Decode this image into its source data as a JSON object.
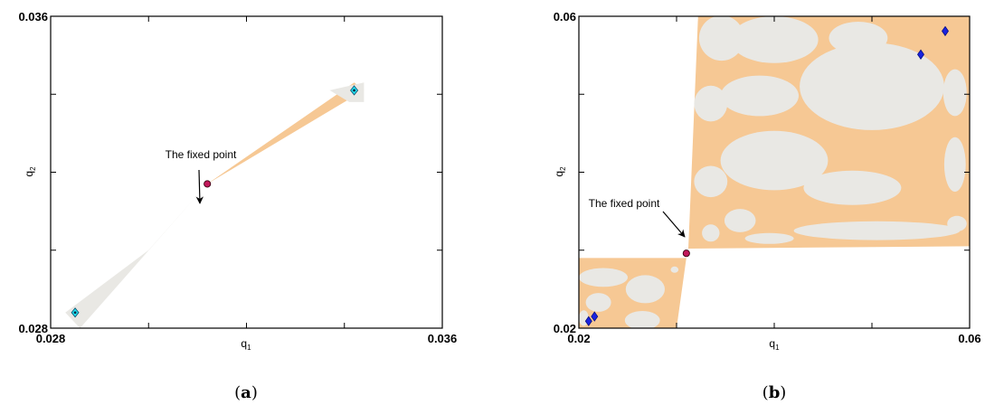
{
  "colors": {
    "region_orange": "#f6c894",
    "region_grey": "#e9e8e4",
    "fixed_point": "#c2185b",
    "marker_blue": "#1a23e0",
    "marker_cyan": "#22e0f0",
    "frame": "#000000"
  },
  "chart_data": [
    {
      "type": "scatter",
      "panel_caption": "a",
      "x_label": "q",
      "x_label_sub": "1",
      "y_label": "q",
      "y_label_sub": "2",
      "xlim": [
        0.028,
        0.036
      ],
      "ylim": [
        0.028,
        0.036
      ],
      "x_tick_labels": [
        "0.028",
        "",
        "",
        "",
        "0.036"
      ],
      "y_tick_labels": [
        "0.028",
        "",
        "",
        "",
        "0.036"
      ],
      "x_ticks": [
        0.028,
        0.03,
        0.032,
        0.034,
        0.036
      ],
      "y_ticks": [
        0.028,
        0.03,
        0.032,
        0.034,
        0.036
      ],
      "grid": false,
      "fixed_point": {
        "x": 0.0312,
        "y": 0.0317
      },
      "annotation": {
        "text": "The fixed point"
      },
      "markers": [
        {
          "x": 0.0285,
          "y": 0.0284,
          "style": "cyan-diamond"
        },
        {
          "x": 0.0342,
          "y": 0.0341,
          "style": "cyan-diamond"
        }
      ],
      "regions": [
        {
          "fill": "grey",
          "points": [
            [
              0.0283,
              0.0284
            ],
            [
              0.0286,
              0.028
            ],
            [
              0.0312,
              0.0317
            ],
            [
              0.03,
              0.03
            ]
          ]
        },
        {
          "fill": "orange",
          "points": [
            [
              0.0312,
              0.0317
            ],
            [
              0.0342,
              0.0343
            ],
            [
              0.0344,
              0.0341
            ]
          ]
        },
        {
          "fill": "grey",
          "points": [
            [
              0.0337,
              0.0341
            ],
            [
              0.0344,
              0.0343
            ],
            [
              0.0344,
              0.0338
            ],
            [
              0.0341,
              0.0338
            ]
          ]
        }
      ]
    },
    {
      "type": "scatter",
      "panel_caption": "b",
      "x_label": "q",
      "x_label_sub": "1",
      "y_label": "q",
      "y_label_sub": "2",
      "xlim": [
        0.02,
        0.06
      ],
      "ylim": [
        0.02,
        0.06
      ],
      "x_tick_labels": [
        "0.02",
        "",
        "",
        "",
        "0.06"
      ],
      "y_tick_labels": [
        "0.02",
        "",
        "",
        "",
        "0.06"
      ],
      "x_ticks": [
        0.02,
        0.03,
        0.04,
        0.05,
        0.06
      ],
      "y_ticks": [
        0.02,
        0.03,
        0.04,
        0.05,
        0.06
      ],
      "grid": false,
      "fixed_point": {
        "x": 0.031,
        "y": 0.0296
      },
      "annotation": {
        "text": "The fixed point"
      },
      "markers": [
        {
          "x": 0.021,
          "y": 0.0209,
          "style": "blue-diamond"
        },
        {
          "x": 0.0216,
          "y": 0.0215,
          "style": "blue-diamond"
        },
        {
          "x": 0.055,
          "y": 0.0551,
          "style": "blue-diamond"
        },
        {
          "x": 0.0575,
          "y": 0.0581,
          "style": "blue-diamond"
        }
      ],
      "regions": [
        {
          "fill": "orange",
          "points": [
            [
              0.0312,
              0.0302
            ],
            [
              0.0322,
              0.06
            ],
            [
              0.06,
              0.06
            ],
            [
              0.06,
              0.0305
            ]
          ]
        },
        {
          "fill": "orange",
          "points": [
            [
              0.02,
              0.029
            ],
            [
              0.031,
              0.029
            ],
            [
              0.03,
              0.02
            ],
            [
              0.02,
              0.02
            ]
          ]
        }
      ],
      "holes": [
        {
          "cx": 0.0346,
          "cy": 0.0572,
          "rx": 0.0023,
          "ry": 0.0029
        },
        {
          "cx": 0.04,
          "cy": 0.057,
          "rx": 0.0045,
          "ry": 0.003
        },
        {
          "cx": 0.0486,
          "cy": 0.0572,
          "rx": 0.003,
          "ry": 0.0021
        },
        {
          "cx": 0.05,
          "cy": 0.051,
          "rx": 0.0074,
          "ry": 0.0056
        },
        {
          "cx": 0.0385,
          "cy": 0.0498,
          "rx": 0.004,
          "ry": 0.0026
        },
        {
          "cx": 0.0335,
          "cy": 0.0488,
          "rx": 0.0017,
          "ry": 0.0023
        },
        {
          "cx": 0.0585,
          "cy": 0.0502,
          "rx": 0.0012,
          "ry": 0.003
        },
        {
          "cx": 0.0585,
          "cy": 0.041,
          "rx": 0.0011,
          "ry": 0.0035
        },
        {
          "cx": 0.04,
          "cy": 0.0415,
          "rx": 0.0055,
          "ry": 0.0038
        },
        {
          "cx": 0.048,
          "cy": 0.038,
          "rx": 0.005,
          "ry": 0.0022
        },
        {
          "cx": 0.0335,
          "cy": 0.0388,
          "rx": 0.0017,
          "ry": 0.002
        },
        {
          "cx": 0.0365,
          "cy": 0.0338,
          "rx": 0.0016,
          "ry": 0.0015
        },
        {
          "cx": 0.0335,
          "cy": 0.0322,
          "rx": 0.0009,
          "ry": 0.0011
        },
        {
          "cx": 0.0505,
          "cy": 0.0325,
          "rx": 0.0085,
          "ry": 0.0012
        },
        {
          "cx": 0.0587,
          "cy": 0.0334,
          "rx": 0.001,
          "ry": 0.001
        },
        {
          "cx": 0.0395,
          "cy": 0.0315,
          "rx": 0.0025,
          "ry": 0.0007
        },
        {
          "cx": 0.0225,
          "cy": 0.0265,
          "rx": 0.0025,
          "ry": 0.0012
        },
        {
          "cx": 0.0268,
          "cy": 0.025,
          "rx": 0.002,
          "ry": 0.0018
        },
        {
          "cx": 0.022,
          "cy": 0.0233,
          "rx": 0.0013,
          "ry": 0.0012
        },
        {
          "cx": 0.0265,
          "cy": 0.021,
          "rx": 0.0018,
          "ry": 0.0012
        },
        {
          "cx": 0.0205,
          "cy": 0.0213,
          "rx": 0.0005,
          "ry": 0.001
        },
        {
          "cx": 0.0298,
          "cy": 0.0275,
          "rx": 0.0004,
          "ry": 0.0004
        }
      ]
    }
  ]
}
